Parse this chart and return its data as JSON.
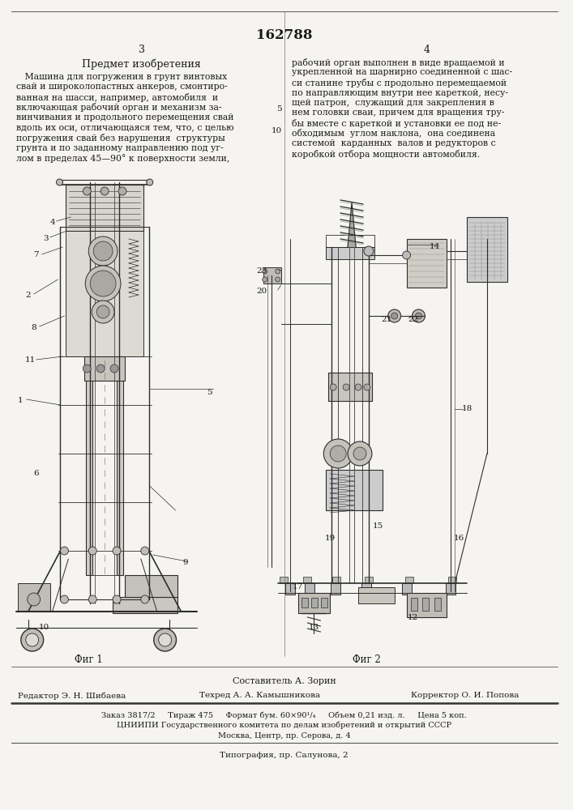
{
  "patent_number": "162788",
  "page_left": "3",
  "page_right": "4",
  "title_left": "Предмет изобретения",
  "text_left_lines": [
    "   Машина для погружения в грунт винтовых",
    "свай и широколопастных анкеров, смонтиро-",
    "ванная на шасси, например, автомобиля  и",
    "включающая рабочий орган и механизм за-",
    "винчивания и продольного перемещения свай",
    "вдоль их оси, отличающаяся тем, что, с целью",
    "погружения свай без нарушения  структуры",
    "грунта и по заданному направлению под уг-",
    "лом в пределах 45—90° к поверхности земли,"
  ],
  "line_number_5": "5",
  "line_number_10": "10",
  "text_right_lines": [
    "рабочий орган выполнен в виде вращаемой и",
    "укрепленной на шарнирно соединенной с шас-",
    "си станине трубы с продольно перемещаемой",
    "по направляющим внутри нее кареткой, несу-",
    "щей патрон,  служащий для закрепления в",
    "нем головки сваи, причем для вращения тру-",
    "бы вместе с кареткой и установки ее под не-",
    "обходимым  углом наклона,  она соединена",
    "системой  карданных  валов и редукторов с",
    "коробкой отбора мощности автомобиля."
  ],
  "fig1_label": "Фиг 1",
  "fig2_label": "Фиг 2",
  "composer": "Составитель А. Зорин",
  "editor": "Редактор Э. Н. Шибаева",
  "techred": "Техред А. А. Камышникова",
  "corrector": "Корректор О. И. Попова",
  "order_line": "Заказ 3817/2     Тираж 475     Формат бум. 60×90¹/₄     Объем 0,21 изд. л.     Цена 5 коп.",
  "institute": "ЦНИИПИ Государственного комитета по делам изобретений и открытий СССР",
  "address": "Москва, Центр, пр. Серова, д. 4",
  "typography": "Типография, пр. Салунова, 2",
  "bg_color": "#f5f4f0",
  "text_color": "#1a1a1a"
}
